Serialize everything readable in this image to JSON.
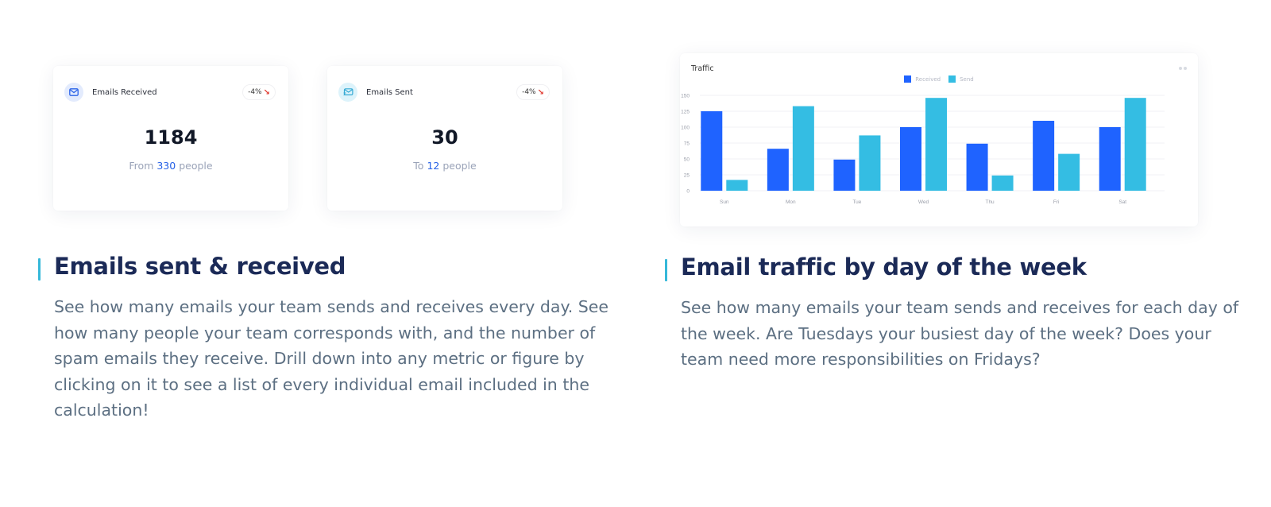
{
  "cards": {
    "received": {
      "label": "Emails Received",
      "icon": "envelope-icon",
      "badge": "-4%",
      "badge_arrow": "↘",
      "value": "1184",
      "sub_prefix": "From ",
      "sub_highlight": "330",
      "sub_suffix": " people"
    },
    "sent": {
      "label": "Emails Sent",
      "icon": "envelope-send-icon",
      "badge": "-4%",
      "badge_arrow": "↘",
      "value": "30",
      "sub_prefix": "To ",
      "sub_highlight": "12",
      "sub_suffix": " people"
    }
  },
  "chart": {
    "title": "Traffic",
    "legend": [
      {
        "label": "Received",
        "color": "#1f63ff"
      },
      {
        "label": "Send",
        "color": "#34bde3"
      }
    ]
  },
  "chart_data": {
    "type": "bar",
    "title": "Traffic",
    "categories": [
      "Sun",
      "Mon",
      "Tue",
      "Wed",
      "Thu",
      "Fri",
      "Sat"
    ],
    "series": [
      {
        "name": "Received",
        "color": "#1f63ff",
        "values": [
          125,
          66,
          49,
          100,
          74,
          110,
          100
        ]
      },
      {
        "name": "Send",
        "color": "#34bde3",
        "values": [
          17,
          133,
          87,
          146,
          24,
          58,
          146
        ]
      }
    ],
    "yticks": [
      0,
      25,
      50,
      75,
      100,
      125,
      150
    ],
    "ylim": [
      0,
      150
    ],
    "xlabel": "",
    "ylabel": "",
    "grid": true,
    "legend_position": "top"
  },
  "sections": {
    "left": {
      "title": "Emails sent & received",
      "body_lines": [
        "See how many emails your team sends and receives every day. See",
        "how many people your team corresponds with, and the number of",
        "spam emails they receive. Drill down into any metric or figure by",
        "clicking on it to see a list of every individual email included in the",
        "calculation!"
      ]
    },
    "right": {
      "title": "Email traffic by day of the week",
      "body_lines": [
        "See how many emails your team sends and receives for each day of",
        "the week. Are Tuesdays your busiest day of the week? Does your",
        "team need more responsibilities on Fridays?"
      ]
    }
  },
  "colors": {
    "accent": "#35b8d9",
    "title": "#1b2a57",
    "body": "#5c6f82",
    "highlight": "#2560e6",
    "down": "#e0392f"
  }
}
